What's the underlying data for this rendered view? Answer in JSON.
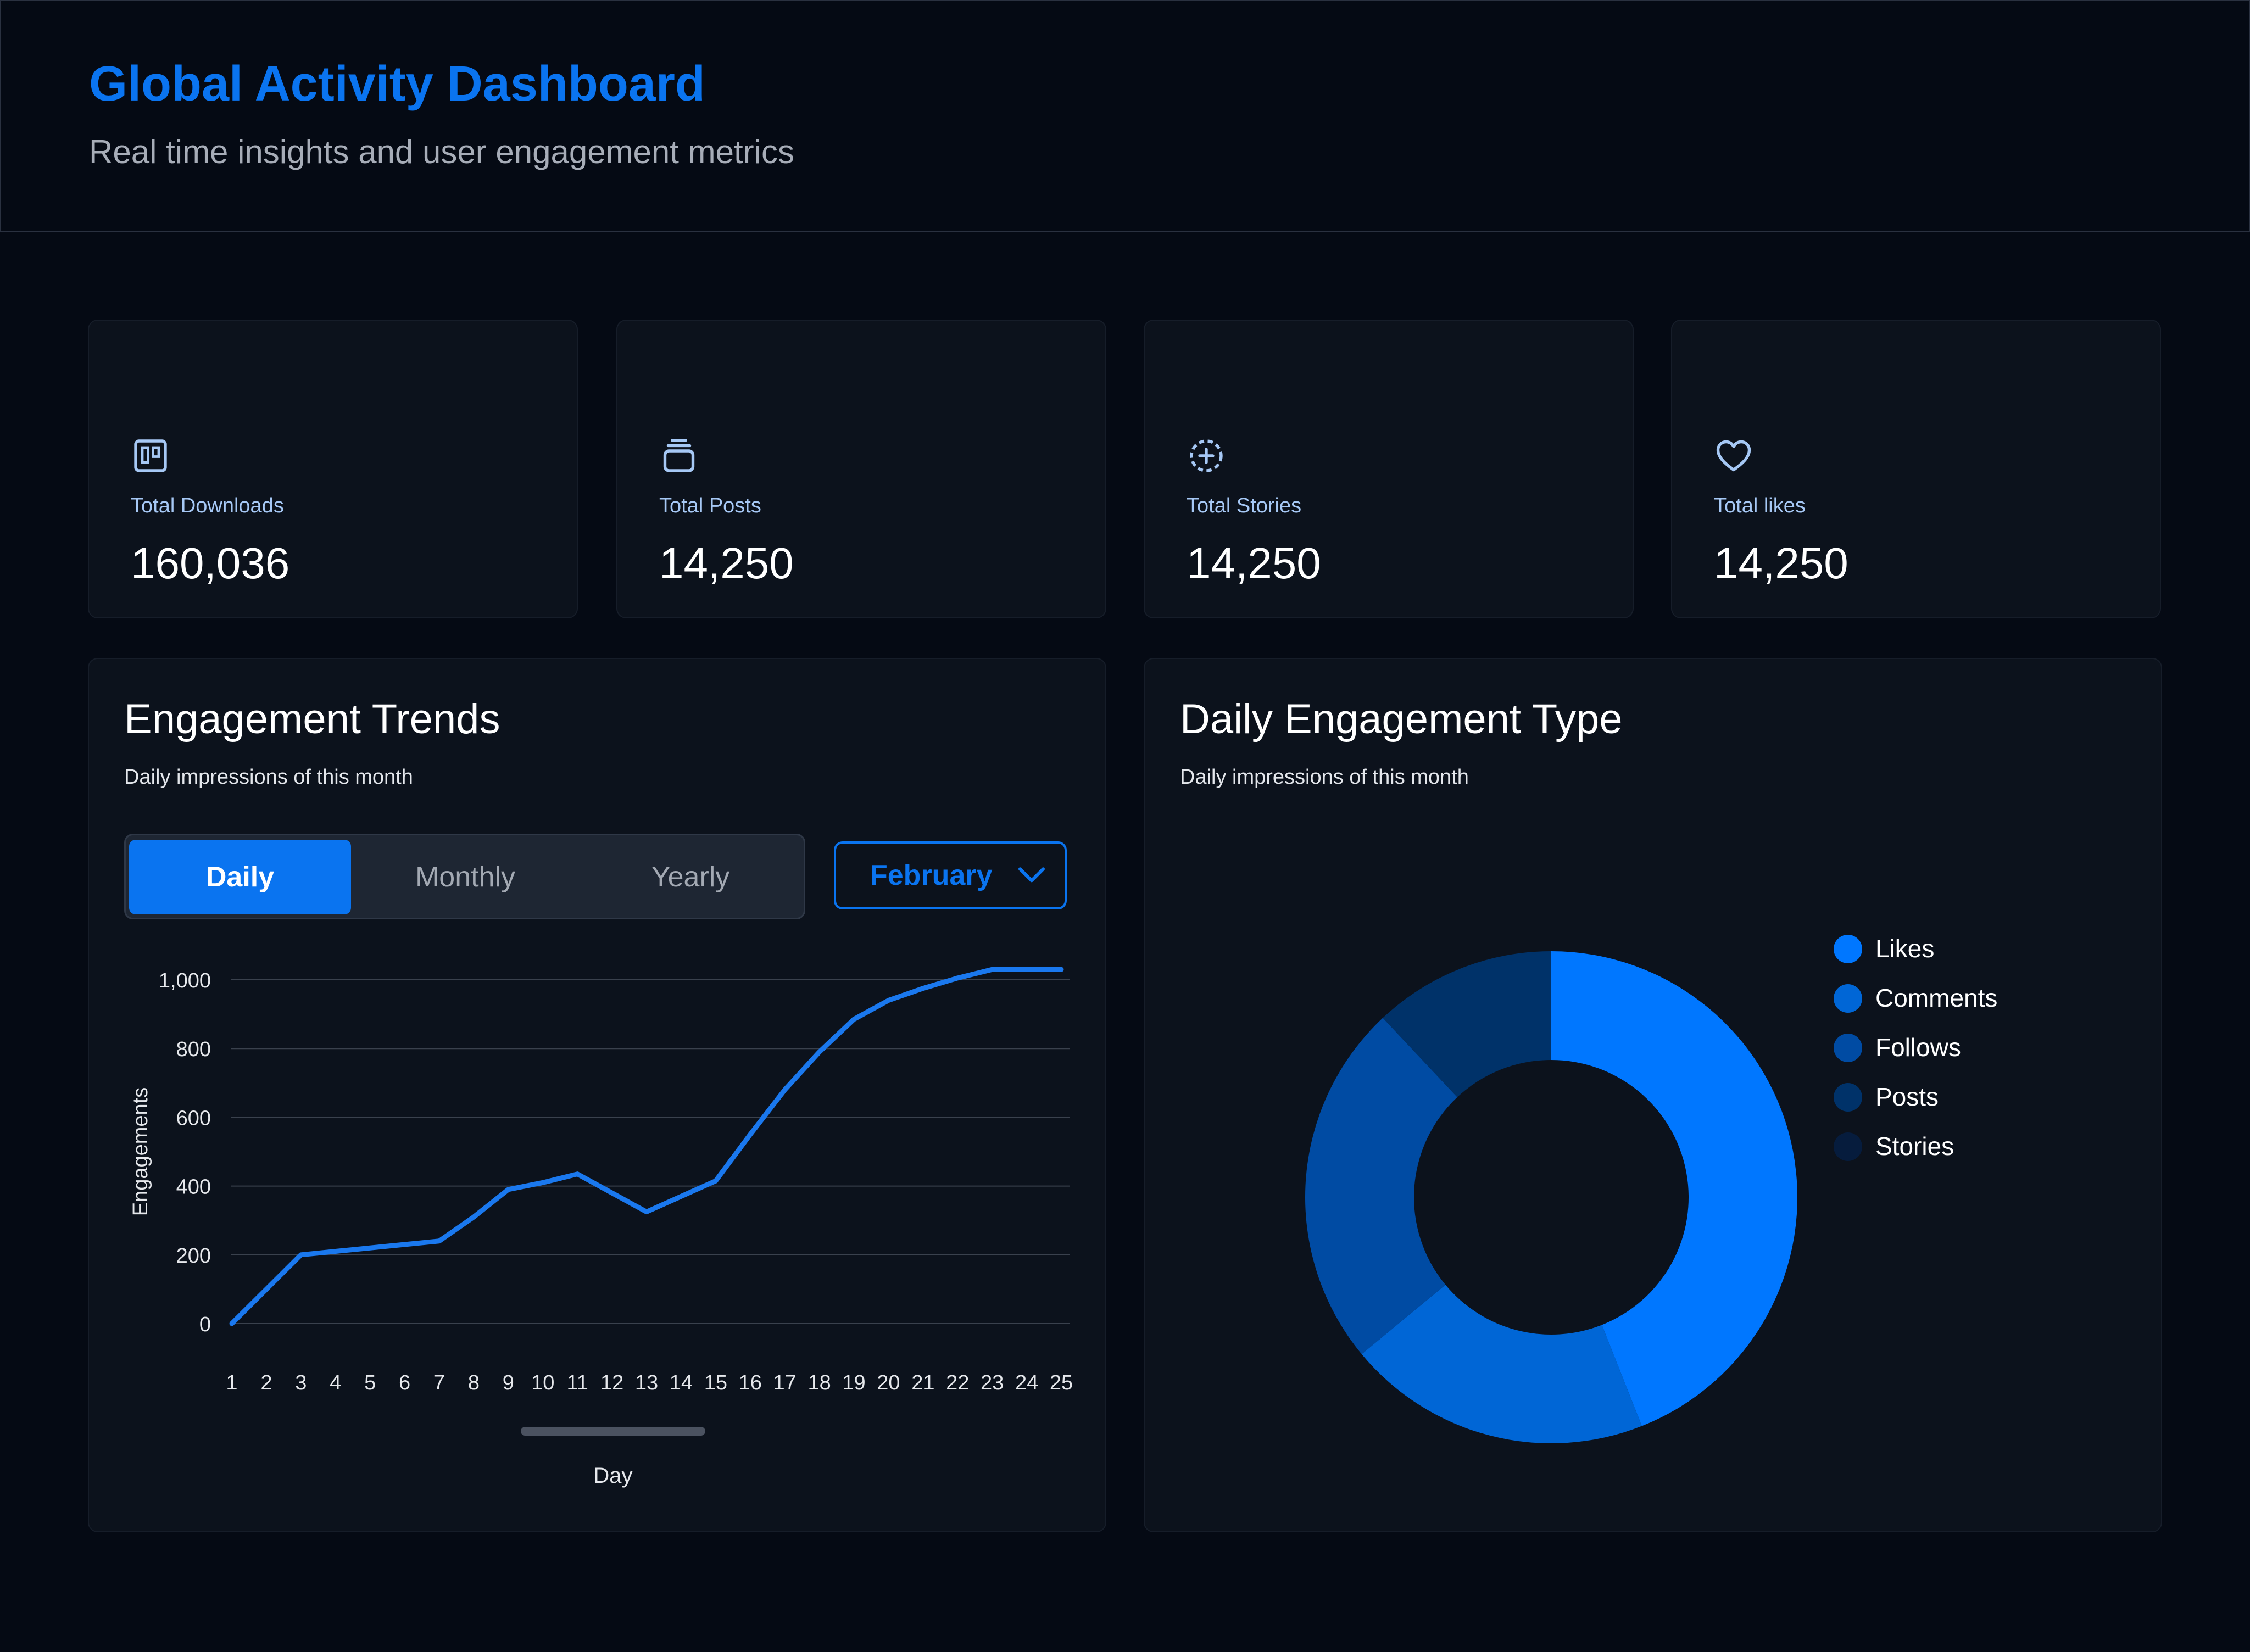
{
  "header": {
    "title": "Global Activity Dashboard",
    "subtitle": "Real time insights and user engagement metrics"
  },
  "stats": [
    {
      "label": "Total Downloads",
      "value": "160,036",
      "icon": "board-icon"
    },
    {
      "label": "Total Posts",
      "value": "14,250",
      "icon": "stack-icon"
    },
    {
      "label": "Total Stories",
      "value": "14,250",
      "icon": "add-story-icon"
    },
    {
      "label": "Total likes",
      "value": "14,250",
      "icon": "heart-icon"
    }
  ],
  "trends": {
    "title": "Engagement Trends",
    "subtitle": "Daily impressions of this month",
    "tabs": [
      "Daily",
      "Monthly",
      "Yearly"
    ],
    "active_tab": "Daily",
    "month": "February"
  },
  "engagement_type": {
    "title": "Daily Engagement Type",
    "subtitle": "Daily impressions of this month"
  },
  "colors": {
    "accent": "#0a74f0",
    "line": "#1a78ee",
    "donut": [
      "#0077ff",
      "#0066d6",
      "#004ba3",
      "#003269",
      "#061c3d"
    ]
  },
  "chart_data": [
    {
      "type": "line",
      "ylabel": "Engagements",
      "xlabel": "Day",
      "x": [
        "1",
        "2",
        "3",
        "4",
        "5",
        "6",
        "7",
        "8",
        "9",
        "10",
        "11",
        "12",
        "13",
        "14",
        "15",
        "16",
        "17",
        "18",
        "19",
        "20",
        "21",
        "22",
        "23",
        "24",
        "25"
      ],
      "series": [
        {
          "values": [
            0,
            100,
            200,
            210,
            220,
            230,
            240,
            310,
            390,
            410,
            435,
            380,
            325,
            370,
            415,
            550,
            680,
            790,
            885,
            940,
            975,
            1005,
            1030,
            1030,
            1030
          ]
        }
      ],
      "yticks": [
        "0",
        "200",
        "400",
        "600",
        "800",
        "1,000"
      ],
      "ylim": [
        0,
        1000
      ],
      "grid": true
    },
    {
      "type": "pie",
      "donut": true,
      "labels": [
        "Likes",
        "Comments",
        "Follows",
        "Posts",
        "Stories"
      ],
      "values": [
        44,
        20,
        24,
        12,
        0
      ],
      "legend": "right"
    }
  ]
}
